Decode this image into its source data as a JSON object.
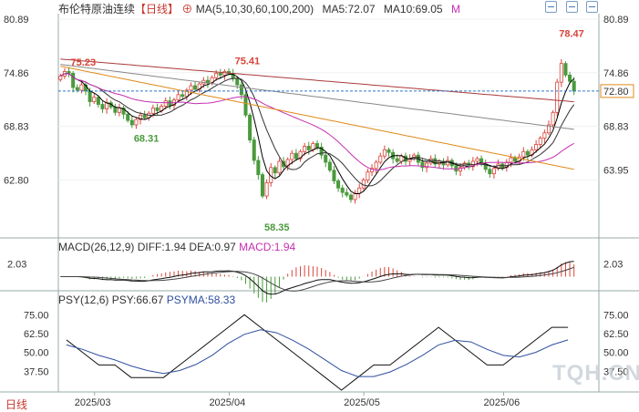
{
  "header": {
    "title": "布伦特原油连续",
    "period": "【日线】",
    "ma_label": "MA(5,10,30,60,100,200)",
    "ma5_label": "MA5:72.07",
    "ma10_label": "MA10:69.05",
    "m_label": "M"
  },
  "macd_header": {
    "label": "MACD(26,12,9)",
    "diff": "DIFF:1.94",
    "dea": "DEA:0.97",
    "macd": "MACD:1.94"
  },
  "psy_header": {
    "label": "PSY(12,6)",
    "psy": "PSY:66.67",
    "psyma": "PSYMA:58.33"
  },
  "bottom_tab": "日线",
  "watermark": "TQH.CN",
  "colors": {
    "up": "#d9443a",
    "down": "#4a9a3c",
    "ma5": "#000000",
    "ma10": "#333333",
    "ma30": "#c62fb0",
    "ma60": "#e08a1a",
    "ma100": "#888888",
    "ma200": "#a83a3a",
    "psy": "#111111",
    "psyma": "#2e4fa0"
  },
  "chart_data": {
    "type": "candlestick",
    "price_axis": {
      "ticks": [
        "80.89",
        "74.86",
        "68.83",
        "62.80"
      ],
      "right_ticks": [
        "80.89",
        "74.86",
        "68.83"
      ],
      "range": [
        56.6,
        81.5
      ]
    },
    "current_price_label": "72.80",
    "ma60_label": "63.95",
    "annotations": [
      {
        "text": "75.23",
        "value": 75.23,
        "index": 2
      },
      {
        "text": "68.31",
        "value": 68.31,
        "index": 17
      },
      {
        "text": "75.41",
        "value": 75.41,
        "index": 41
      },
      {
        "text": "58.35",
        "value": 58.35,
        "index": 48
      },
      {
        "text": "78.47",
        "value": 78.47,
        "index": 118
      }
    ],
    "x_labels": [
      "2025/03",
      "2025/04",
      "2025/05",
      "2025/06"
    ],
    "closes": [
      74.5,
      75.0,
      74.8,
      73.2,
      72.9,
      73.5,
      72.8,
      71.6,
      72.1,
      71.3,
      70.8,
      71.5,
      71.0,
      70.4,
      70.9,
      70.2,
      69.5,
      69.0,
      69.6,
      70.1,
      69.8,
      70.3,
      70.9,
      70.6,
      71.1,
      71.7,
      71.2,
      71.8,
      72.4,
      72.2,
      72.9,
      73.4,
      73.0,
      73.6,
      74.0,
      73.7,
      74.3,
      74.8,
      74.6,
      75.0,
      74.8,
      74.2,
      73.5,
      72.4,
      70.1,
      67.3,
      65.0,
      63.4,
      61.0,
      62.5,
      64.2,
      63.6,
      64.9,
      64.3,
      65.1,
      65.8,
      65.2,
      66.0,
      66.6,
      66.2,
      66.9,
      66.5,
      65.6,
      64.8,
      63.9,
      62.7,
      61.9,
      61.4,
      61.1,
      60.6,
      61.3,
      61.9,
      62.8,
      63.7,
      64.1,
      64.8,
      65.5,
      66.2,
      65.9,
      65.2,
      64.9,
      65.5,
      64.9,
      65.2,
      65.6,
      64.8,
      64.2,
      64.7,
      65.2,
      64.6,
      64.9,
      64.5,
      65.0,
      64.4,
      63.8,
      64.2,
      64.7,
      64.3,
      64.9,
      65.2,
      64.6,
      64.0,
      63.5,
      64.1,
      64.6,
      64.2,
      64.8,
      65.3,
      64.9,
      65.4,
      66.0,
      65.6,
      66.2,
      66.8,
      67.5,
      68.1,
      69.0,
      70.4,
      73.8,
      75.9,
      74.6,
      73.9,
      72.8
    ],
    "macd_axis": {
      "ticks": [
        "2.03"
      ]
    },
    "psy_axis": {
      "ticks": [
        "75.00",
        "62.50",
        "50.00",
        "37.50"
      ],
      "range": [
        25,
        80
      ]
    },
    "psy": [
      58.33,
      50.0,
      41.67,
      41.67,
      33.33,
      33.33,
      33.33,
      41.67,
      50.0,
      58.33,
      66.67,
      75.0,
      66.67,
      58.33,
      50.0,
      41.67,
      33.33,
      25.0,
      33.33,
      41.67,
      41.67,
      50.0,
      58.33,
      66.67,
      58.33,
      50.0,
      41.67,
      41.67,
      50.0,
      58.33,
      66.67,
      66.67
    ],
    "psyma": [
      55.0,
      52.0,
      48.0,
      45.0,
      41.0,
      38.0,
      36.0,
      38.0,
      42.0,
      48.0,
      56.0,
      62.0,
      65.0,
      63.0,
      58.0,
      52.0,
      45.0,
      38.0,
      34.0,
      34.0,
      37.0,
      42.0,
      48.0,
      55.0,
      58.0,
      57.0,
      52.0,
      48.0,
      47.0,
      50.0,
      55.0,
      58.33
    ]
  }
}
